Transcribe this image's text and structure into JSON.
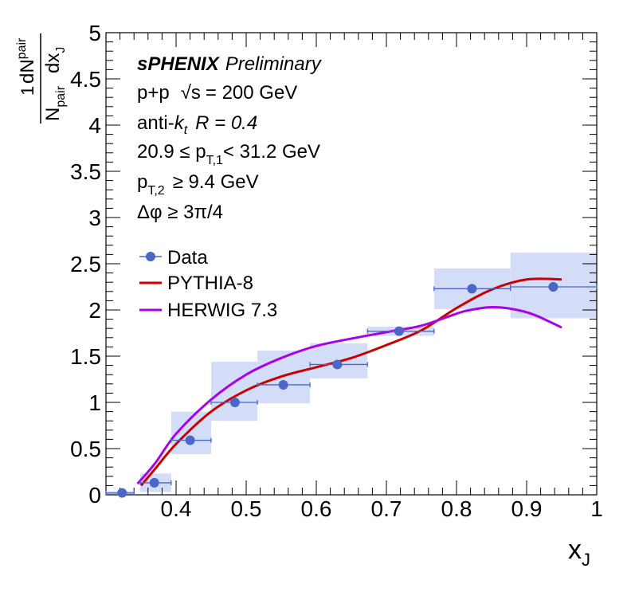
{
  "chart_data": {
    "type": "scatter",
    "xlabel": "x",
    "xlabel_sub": "J",
    "ylabel": {
      "numerator_prefix": "1",
      "denominator_main": "N",
      "denominator_sub": "pair",
      "dN_main": "dN",
      "dN_sub": "pair",
      "dx_main": "dx",
      "dx_sub": "J"
    },
    "xlim": [
      0.3,
      1.0
    ],
    "ylim": [
      0,
      5
    ],
    "x_ticks": [
      "0.4",
      "0.5",
      "0.6",
      "0.7",
      "0.8",
      "0.9",
      "1"
    ],
    "y_ticks": [
      "0",
      "0.5",
      "1",
      "1.5",
      "2",
      "2.5",
      "3",
      "3.5",
      "4",
      "4.5",
      "5"
    ],
    "annotations": {
      "experiment": "sPHENIX",
      "status": "Preliminary",
      "system": "p+p",
      "sqrt_symbol": "√s",
      "energy": "= 200 GeV",
      "algo_prefix": "anti-",
      "algo_k": "k",
      "algo_t": "t",
      "radius": "R = 0.4",
      "pt1_left": "20.9 ≤ p",
      "pt1_sub": "T,1",
      "pt1_right": "< 31.2 GeV",
      "pt2_left": "p",
      "pt2_sub": "T,2",
      "pt2_right": "≥ 9.4 GeV",
      "dphi": "Δφ ≥ 3π/4"
    },
    "data": {
      "name": "Data",
      "color": "#4a66c7",
      "points": [
        {
          "x": 0.323,
          "y": 0.02,
          "xlo": 0.3,
          "xhi": 0.34,
          "ylo": 0.0,
          "yhi": 0.04
        },
        {
          "x": 0.369,
          "y": 0.13,
          "xlo": 0.349,
          "xhi": 0.393,
          "ylo": 0.03,
          "yhi": 0.23
        },
        {
          "x": 0.42,
          "y": 0.59,
          "xlo": 0.393,
          "xhi": 0.45,
          "ylo": 0.44,
          "yhi": 0.9
        },
        {
          "x": 0.484,
          "y": 1.0,
          "xlo": 0.45,
          "xhi": 0.516,
          "ylo": 0.8,
          "yhi": 1.44
        },
        {
          "x": 0.553,
          "y": 1.19,
          "xlo": 0.516,
          "xhi": 0.591,
          "ylo": 0.99,
          "yhi": 1.56
        },
        {
          "x": 0.63,
          "y": 1.41,
          "xlo": 0.591,
          "xhi": 0.673,
          "ylo": 1.26,
          "yhi": 1.64
        },
        {
          "x": 0.718,
          "y": 1.77,
          "xlo": 0.673,
          "xhi": 0.768,
          "ylo": 1.72,
          "yhi": 1.82
        },
        {
          "x": 0.822,
          "y": 2.23,
          "xlo": 0.768,
          "xhi": 0.877,
          "ylo": 2.01,
          "yhi": 2.45
        },
        {
          "x": 0.938,
          "y": 2.25,
          "xlo": 0.877,
          "xhi": 1.0,
          "ylo": 1.91,
          "yhi": 2.62
        }
      ]
    },
    "curves": [
      {
        "name": "PYTHIA-8",
        "color": "#cc0000",
        "x": [
          0.35,
          0.37,
          0.4,
          0.45,
          0.5,
          0.55,
          0.6,
          0.65,
          0.7,
          0.75,
          0.8,
          0.85,
          0.9,
          0.95
        ],
        "y": [
          0.1,
          0.28,
          0.55,
          0.9,
          1.13,
          1.28,
          1.38,
          1.48,
          1.62,
          1.78,
          2.02,
          2.22,
          2.33,
          2.33
        ]
      },
      {
        "name": "HERWIG 7.3",
        "color": "#aa00ee",
        "x": [
          0.345,
          0.37,
          0.4,
          0.45,
          0.5,
          0.55,
          0.6,
          0.65,
          0.7,
          0.75,
          0.8,
          0.82,
          0.85,
          0.88,
          0.91,
          0.95
        ],
        "y": [
          0.12,
          0.34,
          0.66,
          1.03,
          1.3,
          1.48,
          1.61,
          1.69,
          1.76,
          1.83,
          1.96,
          2.0,
          2.03,
          2.01,
          1.95,
          1.81
        ]
      }
    ]
  }
}
